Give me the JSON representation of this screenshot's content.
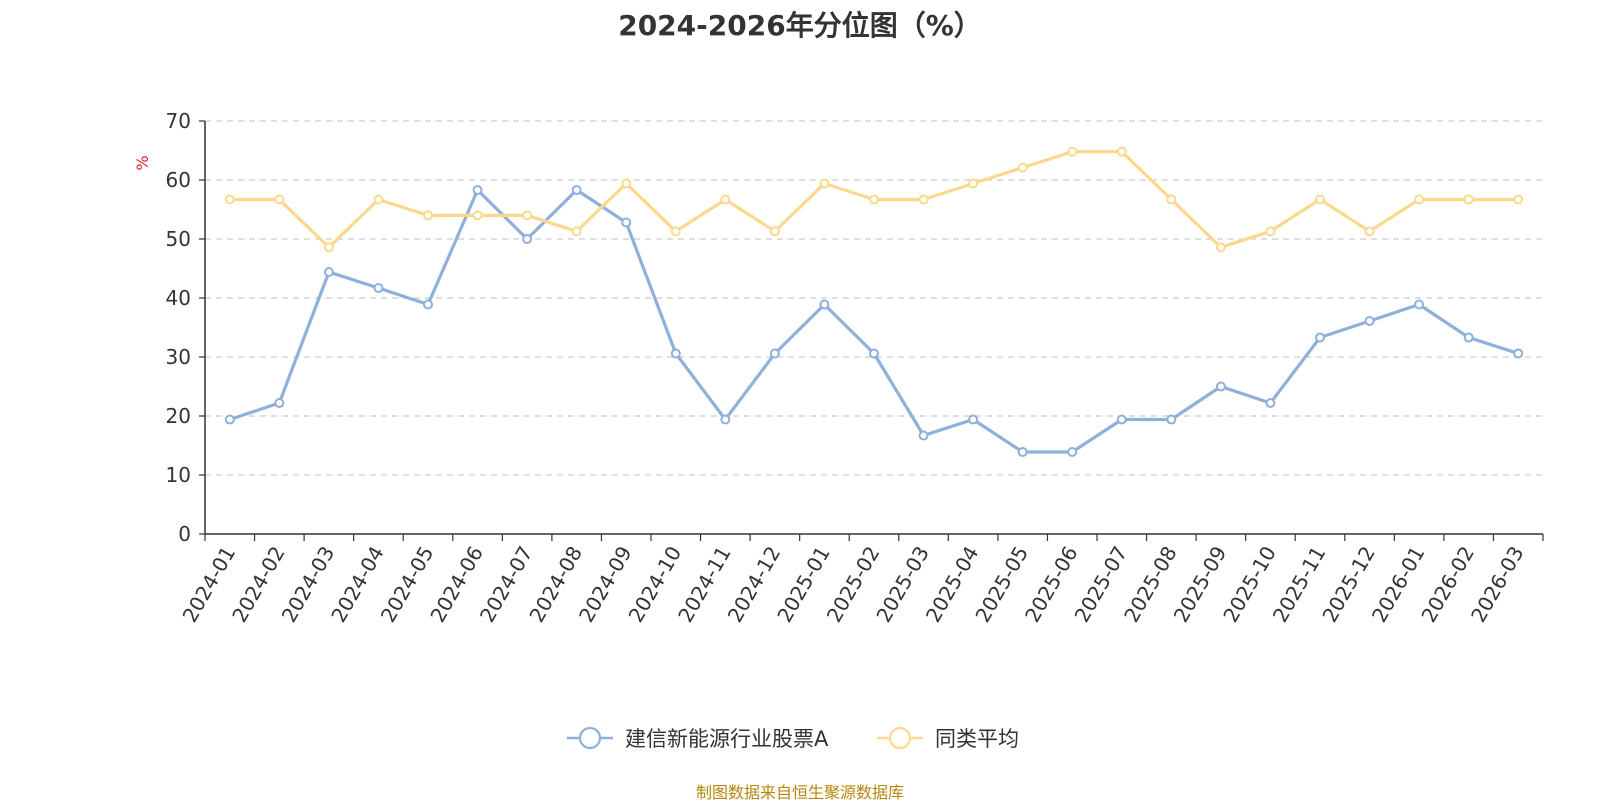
{
  "chart_data": {
    "type": "line",
    "title": "2024-2026年分位图（%）",
    "ylabel": "%",
    "xlabel": "",
    "ylim": [
      0,
      70
    ],
    "yticks": [
      0,
      10,
      20,
      30,
      40,
      50,
      60,
      70
    ],
    "grid": true,
    "legend_position": "bottom-center",
    "categories": [
      "2024-01",
      "2024-02",
      "2024-03",
      "2024-04",
      "2024-05",
      "2024-06",
      "2024-07",
      "2024-08",
      "2024-09",
      "2024-10",
      "2024-11",
      "2024-12",
      "2025-01",
      "2025-02",
      "2025-03",
      "2025-04",
      "2025-05",
      "2025-06",
      "2025-07",
      "2025-08",
      "2025-09",
      "2025-10",
      "2025-11",
      "2025-12",
      "2026-01",
      "2026-02",
      "2026-03"
    ],
    "series": [
      {
        "name": "建信新能源行业股票A",
        "color": "#8eb0da",
        "values": [
          19.4,
          22.2,
          44.4,
          41.7,
          38.9,
          58.3,
          50.0,
          58.3,
          52.8,
          30.6,
          19.4,
          30.6,
          38.9,
          30.6,
          16.7,
          19.4,
          13.9,
          13.9,
          19.4,
          19.4,
          25.0,
          22.2,
          33.3,
          36.1,
          38.9,
          33.3,
          30.6
        ]
      },
      {
        "name": "同类平均",
        "color": "#fbd98c",
        "values": [
          56.7,
          56.7,
          48.6,
          56.7,
          54.0,
          54.0,
          54.0,
          51.3,
          59.4,
          51.3,
          56.7,
          51.3,
          59.4,
          56.7,
          56.7,
          59.4,
          62.1,
          64.8,
          64.8,
          56.7,
          48.6,
          51.3,
          56.7,
          51.3,
          56.7,
          56.7,
          56.7
        ]
      }
    ]
  },
  "footer": {
    "credit": "制图数据来自恒生聚源数据库"
  }
}
